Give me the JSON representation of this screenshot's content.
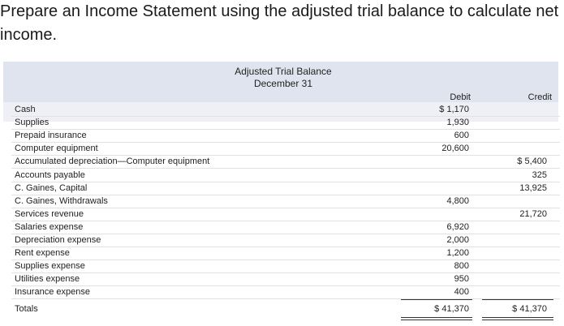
{
  "question": "Prepare an Income Statement using the adjusted trial balance to calculate net income.",
  "trial_balance": {
    "title": "Adjusted Trial Balance",
    "date": "December 31",
    "debit_header": "Debit",
    "credit_header": "Credit",
    "rows": [
      {
        "account": "Cash",
        "debit": "$ 1,170",
        "credit": ""
      },
      {
        "account": "Supplies",
        "debit": "1,930",
        "credit": ""
      },
      {
        "account": "Prepaid insurance",
        "debit": "600",
        "credit": ""
      },
      {
        "account": "Computer equipment",
        "debit": "20,600",
        "credit": ""
      },
      {
        "account": "Accumulated depreciation—Computer equipment",
        "debit": "",
        "credit": "$ 5,400"
      },
      {
        "account": "Accounts payable",
        "debit": "",
        "credit": "325"
      },
      {
        "account": "C. Gaines, Capital",
        "debit": "",
        "credit": "13,925"
      },
      {
        "account": "C. Gaines, Withdrawals",
        "debit": "4,800",
        "credit": ""
      },
      {
        "account": "Services revenue",
        "debit": "",
        "credit": "21,720"
      },
      {
        "account": "Salaries expense",
        "debit": "6,920",
        "credit": ""
      },
      {
        "account": "Depreciation expense",
        "debit": "2,000",
        "credit": ""
      },
      {
        "account": "Rent expense",
        "debit": "1,200",
        "credit": ""
      },
      {
        "account": "Supplies expense",
        "debit": "800",
        "credit": ""
      },
      {
        "account": "Utilities expense",
        "debit": "950",
        "credit": ""
      },
      {
        "account": "Insurance expense",
        "debit": "400",
        "credit": ""
      }
    ],
    "totals": {
      "label": "Totals",
      "debit": "$ 41,370",
      "credit": "$ 41,370"
    }
  }
}
